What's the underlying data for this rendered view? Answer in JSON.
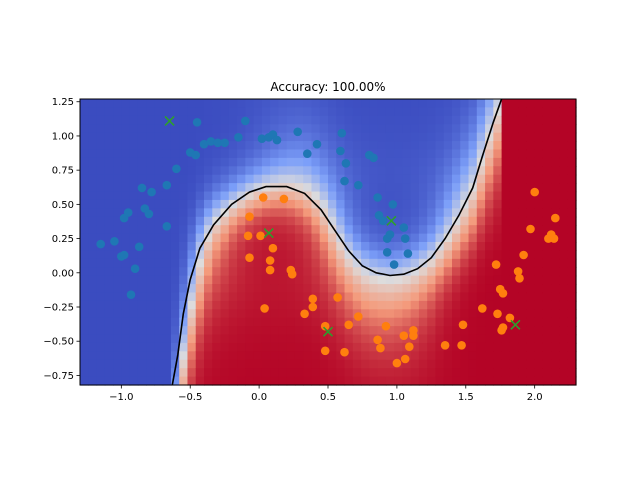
{
  "chart_data": {
    "type": "scatter",
    "title": "Accuracy: 100.00%",
    "xlabel": "",
    "ylabel": "",
    "xlim": [
      -1.3,
      2.3
    ],
    "ylim": [
      -0.82,
      1.27
    ],
    "x_ticks": [
      -1.0,
      -0.5,
      0.0,
      0.5,
      1.0,
      1.5,
      2.0
    ],
    "x_tick_labels": [
      "−1.0",
      "−0.5",
      "0.0",
      "0.5",
      "1.0",
      "1.5",
      "2.0"
    ],
    "y_ticks": [
      -0.75,
      -0.5,
      -0.25,
      0.0,
      0.25,
      0.5,
      0.75,
      1.0,
      1.25
    ],
    "y_tick_labels": [
      "−0.75",
      "−0.50",
      "−0.25",
      "0.00",
      "0.25",
      "0.50",
      "0.75",
      "1.00",
      "1.25"
    ],
    "background": "decision-function heatmap, colormap coolwarm (blue = class 0, red = class 1)",
    "decision_boundary": {
      "color": "#000000",
      "points": [
        [
          -0.63,
          -0.82
        ],
        [
          -0.59,
          -0.6
        ],
        [
          -0.55,
          -0.3
        ],
        [
          -0.5,
          -0.05
        ],
        [
          -0.43,
          0.18
        ],
        [
          -0.33,
          0.35
        ],
        [
          -0.2,
          0.5
        ],
        [
          -0.07,
          0.59
        ],
        [
          0.05,
          0.63
        ],
        [
          0.2,
          0.63
        ],
        [
          0.33,
          0.58
        ],
        [
          0.45,
          0.46
        ],
        [
          0.55,
          0.31
        ],
        [
          0.65,
          0.16
        ],
        [
          0.75,
          0.05
        ],
        [
          0.85,
          0.0
        ],
        [
          0.95,
          -0.02
        ],
        [
          1.05,
          -0.01
        ],
        [
          1.15,
          0.03
        ],
        [
          1.25,
          0.11
        ],
        [
          1.35,
          0.25
        ],
        [
          1.45,
          0.42
        ],
        [
          1.55,
          0.62
        ],
        [
          1.62,
          0.85
        ],
        [
          1.7,
          1.1
        ],
        [
          1.76,
          1.27
        ]
      ]
    },
    "series": [
      {
        "marker": "circle",
        "color": "#1f77b4",
        "points": [
          [
            -1.15,
            0.21
          ],
          [
            -1.05,
            0.23
          ],
          [
            -1.0,
            0.12
          ],
          [
            -0.98,
            0.13
          ],
          [
            -0.93,
            -0.16
          ],
          [
            -0.9,
            0.03
          ],
          [
            -0.87,
            0.19
          ],
          [
            -0.98,
            0.4
          ],
          [
            -0.95,
            0.44
          ],
          [
            -0.83,
            0.47
          ],
          [
            -0.8,
            0.43
          ],
          [
            -0.85,
            0.62
          ],
          [
            -0.78,
            0.59
          ],
          [
            -0.67,
            0.34
          ],
          [
            -0.67,
            0.64
          ],
          [
            -0.6,
            0.76
          ],
          [
            -0.5,
            0.88
          ],
          [
            -0.46,
            0.86
          ],
          [
            -0.45,
            1.1
          ],
          [
            -0.4,
            0.94
          ],
          [
            -0.35,
            0.96
          ],
          [
            -0.3,
            0.95
          ],
          [
            -0.25,
            0.95
          ],
          [
            -0.15,
            0.99
          ],
          [
            -0.1,
            1.11
          ],
          [
            0.02,
            0.98
          ],
          [
            0.07,
            0.99
          ],
          [
            0.1,
            1.01
          ],
          [
            0.13,
            0.97
          ],
          [
            0.28,
            1.03
          ],
          [
            0.35,
            0.87
          ],
          [
            0.42,
            0.94
          ],
          [
            0.59,
            0.89
          ],
          [
            0.6,
            1.02
          ],
          [
            0.62,
            0.67
          ],
          [
            0.63,
            0.8
          ],
          [
            0.72,
            0.64
          ],
          [
            0.8,
            0.86
          ],
          [
            0.83,
            0.84
          ],
          [
            0.86,
            0.55
          ],
          [
            0.87,
            0.42
          ],
          [
            0.9,
            0.38
          ],
          [
            0.93,
            0.25
          ],
          [
            0.95,
            0.28
          ],
          [
            0.97,
            0.5
          ],
          [
            0.93,
            0.15
          ],
          [
            0.98,
            0.06
          ],
          [
            1.05,
            0.33
          ],
          [
            1.06,
            0.25
          ],
          [
            1.08,
            0.14
          ]
        ]
      },
      {
        "marker": "circle",
        "color": "#ff7f0e",
        "points": [
          [
            -0.07,
            0.41
          ],
          [
            -0.08,
            0.27
          ],
          [
            -0.07,
            0.11
          ],
          [
            0.01,
            0.27
          ],
          [
            0.03,
            0.55
          ],
          [
            0.04,
            -0.26
          ],
          [
            0.08,
            0.09
          ],
          [
            0.08,
            0.02
          ],
          [
            0.1,
            0.18
          ],
          [
            0.18,
            0.54
          ],
          [
            0.23,
            0.02
          ],
          [
            0.24,
            -0.01
          ],
          [
            0.33,
            -0.3
          ],
          [
            0.39,
            -0.25
          ],
          [
            0.39,
            -0.19
          ],
          [
            0.48,
            -0.39
          ],
          [
            0.48,
            -0.57
          ],
          [
            0.57,
            -0.18
          ],
          [
            0.62,
            -0.58
          ],
          [
            0.65,
            -0.38
          ],
          [
            0.72,
            -0.32
          ],
          [
            0.86,
            -0.49
          ],
          [
            0.88,
            -0.55
          ],
          [
            0.92,
            -0.39
          ],
          [
            1.0,
            -0.66
          ],
          [
            1.05,
            -0.46
          ],
          [
            1.06,
            -0.63
          ],
          [
            1.09,
            -0.54
          ],
          [
            1.12,
            -0.42
          ],
          [
            1.12,
            -0.46
          ],
          [
            1.35,
            -0.53
          ],
          [
            1.47,
            -0.53
          ],
          [
            1.48,
            -0.38
          ],
          [
            1.62,
            -0.26
          ],
          [
            1.72,
            0.06
          ],
          [
            1.73,
            -0.3
          ],
          [
            1.75,
            -0.12
          ],
          [
            1.76,
            -0.42
          ],
          [
            1.77,
            -0.4
          ],
          [
            1.77,
            -0.15
          ],
          [
            1.82,
            -0.33
          ],
          [
            1.88,
            0.01
          ],
          [
            1.89,
            -0.04
          ],
          [
            1.92,
            0.13
          ],
          [
            1.97,
            0.32
          ],
          [
            2.0,
            0.59
          ],
          [
            2.1,
            0.25
          ],
          [
            2.12,
            0.28
          ],
          [
            2.14,
            0.25
          ],
          [
            2.15,
            0.4
          ]
        ]
      },
      {
        "marker": "x",
        "color": "#2ca02c",
        "points": [
          [
            -0.65,
            1.11
          ],
          [
            0.07,
            0.29
          ],
          [
            0.5,
            -0.43
          ],
          [
            0.96,
            0.38
          ],
          [
            1.86,
            -0.38
          ]
        ]
      }
    ]
  }
}
